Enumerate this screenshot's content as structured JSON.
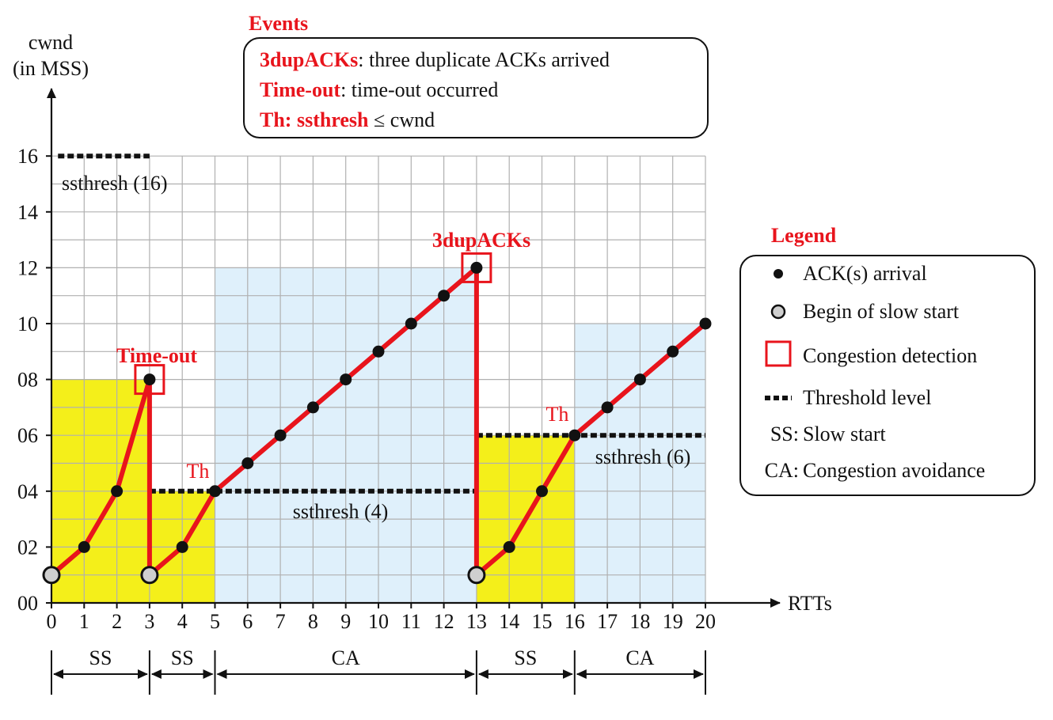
{
  "chart_data": {
    "type": "line",
    "ylabel_line1": "cwnd",
    "ylabel_line2": "(in MSS)",
    "xlabel": "RTTs",
    "xlim": [
      0,
      20
    ],
    "ylim": [
      0,
      16
    ],
    "x_ticks": [
      "0",
      "1",
      "2",
      "3",
      "4",
      "5",
      "6",
      "7",
      "8",
      "9",
      "10",
      "11",
      "12",
      "13",
      "14",
      "15",
      "16",
      "17",
      "18",
      "19",
      "20"
    ],
    "y_ticks": [
      {
        "value": 0,
        "label": "00"
      },
      {
        "value": 2,
        "label": "02"
      },
      {
        "value": 4,
        "label": "04"
      },
      {
        "value": 6,
        "label": "06"
      },
      {
        "value": 8,
        "label": "08"
      },
      {
        "value": 10,
        "label": "10"
      },
      {
        "value": 12,
        "label": "12"
      },
      {
        "value": 14,
        "label": "14"
      },
      {
        "value": 16,
        "label": "16"
      }
    ],
    "grid": true,
    "series": {
      "points": [
        {
          "x": 0,
          "y": 1,
          "kind": "begin"
        },
        {
          "x": 1,
          "y": 2,
          "kind": "ack"
        },
        {
          "x": 2,
          "y": 4,
          "kind": "ack"
        },
        {
          "x": 3,
          "y": 8,
          "kind": "ack"
        },
        {
          "x": 3,
          "y": 1,
          "kind": "begin"
        },
        {
          "x": 4,
          "y": 2,
          "kind": "ack"
        },
        {
          "x": 5,
          "y": 4,
          "kind": "ack"
        },
        {
          "x": 6,
          "y": 5,
          "kind": "ack"
        },
        {
          "x": 7,
          "y": 6,
          "kind": "ack"
        },
        {
          "x": 8,
          "y": 7,
          "kind": "ack"
        },
        {
          "x": 9,
          "y": 8,
          "kind": "ack"
        },
        {
          "x": 10,
          "y": 9,
          "kind": "ack"
        },
        {
          "x": 11,
          "y": 10,
          "kind": "ack"
        },
        {
          "x": 12,
          "y": 11,
          "kind": "ack"
        },
        {
          "x": 13,
          "y": 12,
          "kind": "ack"
        },
        {
          "x": 13,
          "y": 1,
          "kind": "begin"
        },
        {
          "x": 14,
          "y": 2,
          "kind": "ack"
        },
        {
          "x": 15,
          "y": 4,
          "kind": "ack"
        },
        {
          "x": 16,
          "y": 6,
          "kind": "ack"
        },
        {
          "x": 17,
          "y": 7,
          "kind": "ack"
        },
        {
          "x": 18,
          "y": 8,
          "kind": "ack"
        },
        {
          "x": 19,
          "y": 9,
          "kind": "ack"
        },
        {
          "x": 20,
          "y": 10,
          "kind": "ack"
        }
      ],
      "color": "#e8141c"
    },
    "regions": [
      {
        "x0": 0,
        "x1": 3,
        "y": 8,
        "kind": "SS",
        "color": "#f4ef1a"
      },
      {
        "x0": 3,
        "x1": 5,
        "y": 4,
        "kind": "SS",
        "color": "#f4ef1a"
      },
      {
        "x0": 5,
        "x1": 13,
        "y": 12,
        "kind": "CA",
        "color": "#dff0fb"
      },
      {
        "x0": 13,
        "x1": 16,
        "y": 6,
        "kind": "SS",
        "color": "#f4ef1a"
      },
      {
        "x0": 16,
        "x1": 20,
        "y": 10,
        "kind": "CA",
        "color": "#dff0fb"
      }
    ],
    "thresholds": [
      {
        "x0": 0.2,
        "x1": 3.0,
        "y": 16,
        "label": "ssthresh (16)"
      },
      {
        "x0": 3.0,
        "x1": 13.0,
        "y": 4,
        "label": "ssthresh (4)"
      },
      {
        "x0": 13.0,
        "x1": 20.0,
        "y": 6,
        "label": "ssthresh (6)"
      }
    ],
    "congestion_events": [
      {
        "x": 3,
        "y": 8,
        "label": "Time-out"
      },
      {
        "x": 13,
        "y": 12,
        "label": "3dupACKs"
      }
    ],
    "th_markers": [
      {
        "x": 5,
        "y": 4,
        "label": "Th"
      },
      {
        "x": 16,
        "y": 6,
        "label": "Th"
      }
    ],
    "phases": [
      {
        "x0": 0,
        "x1": 3,
        "label": "SS"
      },
      {
        "x0": 3,
        "x1": 5,
        "label": "SS"
      },
      {
        "x0": 5,
        "x1": 13,
        "label": "CA"
      },
      {
        "x0": 13,
        "x1": 16,
        "label": "SS"
      },
      {
        "x0": 16,
        "x1": 20,
        "label": "CA"
      }
    ]
  },
  "events_box": {
    "title": "Events",
    "lines": [
      {
        "term": "3dupACKs",
        "desc": ": three duplicate ACKs arrived"
      },
      {
        "term": "Time-out",
        "desc": ": time-out occurred"
      },
      {
        "term": "Th: ssthresh",
        "desc": " ≤ cwnd"
      }
    ]
  },
  "legend": {
    "title": "Legend",
    "items": [
      {
        "symbol": "ack-dot",
        "label": "ACK(s) arrival"
      },
      {
        "symbol": "begin-dot",
        "label": "Begin of slow start"
      },
      {
        "symbol": "red-square",
        "label": "Congestion detection"
      },
      {
        "symbol": "dotted-line",
        "label": "Threshold level"
      },
      {
        "symbol": "text",
        "prefix": "SS:",
        "label": "Slow start"
      },
      {
        "symbol": "text",
        "prefix": "CA:",
        "label": "Congestion avoidance"
      }
    ]
  },
  "colors": {
    "line": "#e8141c",
    "ss_fill": "#f4ef1a",
    "ca_fill": "#dff0fb",
    "grid": "#b0b0b0",
    "dot": "#111111",
    "begin_dot": "#cfcfcf"
  }
}
